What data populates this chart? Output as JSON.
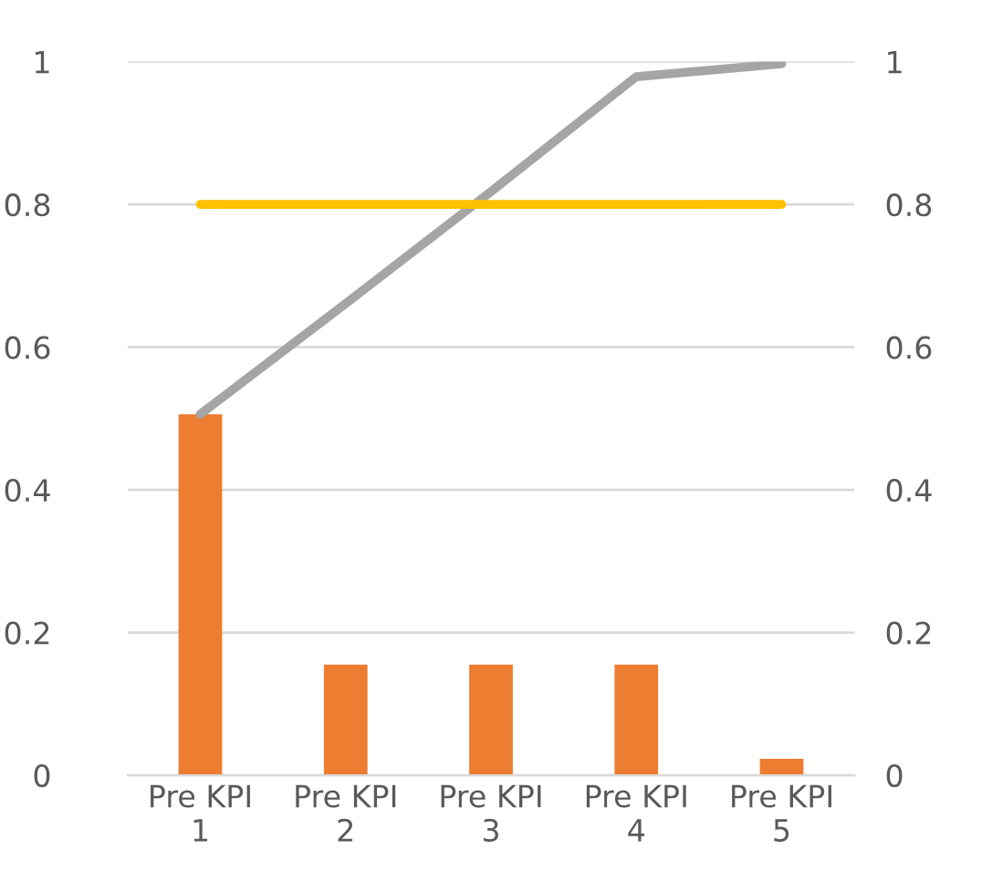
{
  "chart_data": {
    "type": "bar",
    "categories": [
      "Pre KPI\n1",
      "Pre KPI\n2",
      "Pre KPI\n3",
      "Pre KPI\n4",
      "Pre KPI\n5"
    ],
    "series": [
      {
        "color": "#ed7d31",
        "values": [
          0.506,
          0.155,
          0.155,
          0.155,
          0.023
        ]
      },
      {
        "type": "line",
        "color": "#a5a5a5",
        "values": [
          0.506,
          0.661,
          0.818,
          0.979,
          0.997
        ]
      },
      {
        "type": "line",
        "color": "#ffc000",
        "values": [
          0.8,
          0.8,
          0.8,
          0.8,
          0.8
        ]
      }
    ],
    "ylim": [
      0,
      1
    ],
    "yticks": [
      0,
      0.2,
      0.4,
      0.6,
      0.8,
      1
    ],
    "y2lim": [
      0,
      1
    ],
    "y2ticks": [
      0,
      0.2,
      0.4,
      0.6,
      0.8,
      1
    ],
    "grid": "y",
    "marker": "none",
    "line_style": "solid"
  }
}
